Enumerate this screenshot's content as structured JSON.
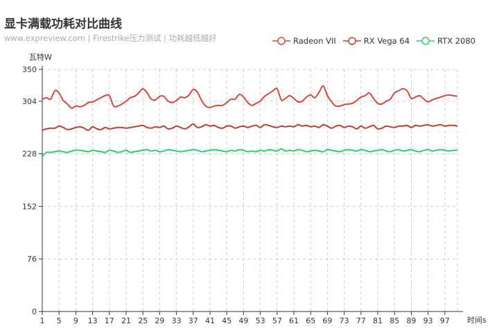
{
  "title": "显卡满载功耗对比曲线",
  "subtitle": "www.expreview.com | Firestrike压力测试 | 功耗越低越好",
  "chart_data": {
    "type": "line",
    "ylabel": "瓦特W",
    "xlabel": "时间s",
    "ylim": [
      0,
      350
    ],
    "yticks": [
      0,
      76,
      152,
      228,
      304,
      350
    ],
    "xlim": [
      1,
      100
    ],
    "xticks": [
      1,
      5,
      9,
      13,
      17,
      21,
      25,
      29,
      33,
      37,
      41,
      45,
      49,
      53,
      57,
      61,
      65,
      69,
      73,
      77,
      81,
      85,
      89,
      93,
      97
    ],
    "grid": true,
    "legend_position": "top-right",
    "x": [
      1,
      2,
      3,
      4,
      5,
      6,
      7,
      8,
      9,
      10,
      11,
      12,
      13,
      14,
      15,
      16,
      17,
      18,
      19,
      20,
      21,
      22,
      23,
      24,
      25,
      26,
      27,
      28,
      29,
      30,
      31,
      32,
      33,
      34,
      35,
      36,
      37,
      38,
      39,
      40,
      41,
      42,
      43,
      44,
      45,
      46,
      47,
      48,
      49,
      50,
      51,
      52,
      53,
      54,
      55,
      56,
      57,
      58,
      59,
      60,
      61,
      62,
      63,
      64,
      65,
      66,
      67,
      68,
      69,
      70,
      71,
      72,
      73,
      74,
      75,
      76,
      77,
      78,
      79,
      80,
      81,
      82,
      83,
      84,
      85,
      86,
      87,
      88,
      89,
      90,
      91,
      92,
      93,
      94,
      95,
      96,
      97,
      98,
      99,
      100
    ],
    "series": [
      {
        "name": "Radeon VII",
        "color": "#d14a3d",
        "values": [
          307,
          309,
          307,
          319,
          316,
          305,
          300,
          294,
          297,
          296,
          298,
          302,
          303,
          306,
          309,
          312,
          312,
          297,
          297,
          300,
          304,
          309,
          311,
          316,
          322,
          316,
          307,
          306,
          311,
          311,
          304,
          302,
          305,
          310,
          309,
          313,
          321,
          317,
          305,
          297,
          295,
          297,
          298,
          298,
          302,
          307,
          307,
          314,
          310,
          302,
          298,
          301,
          304,
          311,
          315,
          319,
          322,
          306,
          308,
          312,
          308,
          303,
          304,
          310,
          313,
          309,
          317,
          326,
          312,
          303,
          297,
          297,
          299,
          300,
          301,
          305,
          310,
          312,
          316,
          308,
          301,
          300,
          304,
          307,
          316,
          319,
          322,
          319,
          308,
          310,
          312,
          307,
          303,
          306,
          308,
          310,
          312,
          313,
          312,
          311
        ]
      },
      {
        "name": "RX Vega 64",
        "color": "#b84033",
        "values": [
          262,
          264,
          265,
          265,
          268,
          266,
          263,
          264,
          266,
          267,
          265,
          262,
          267,
          264,
          263,
          266,
          264,
          265,
          266,
          266,
          265,
          266,
          267,
          268,
          269,
          266,
          265,
          267,
          266,
          268,
          264,
          265,
          268,
          266,
          264,
          267,
          271,
          266,
          267,
          270,
          268,
          269,
          266,
          265,
          268,
          268,
          265,
          267,
          268,
          266,
          268,
          269,
          266,
          270,
          269,
          267,
          266,
          268,
          267,
          268,
          267,
          270,
          268,
          269,
          267,
          268,
          266,
          270,
          268,
          265,
          268,
          269,
          266,
          268,
          267,
          264,
          268,
          265,
          267,
          269,
          264,
          265,
          268,
          267,
          266,
          268,
          268,
          269,
          266,
          269,
          268,
          269,
          270,
          268,
          269,
          270,
          268,
          269,
          269,
          268
        ]
      },
      {
        "name": "RTX 2080",
        "color": "#2ecc71",
        "values": [
          224,
          230,
          230,
          231,
          232,
          231,
          230,
          232,
          233,
          233,
          232,
          231,
          233,
          232,
          231,
          230,
          233,
          232,
          230,
          231,
          233,
          230,
          231,
          232,
          233,
          234,
          232,
          233,
          231,
          232,
          234,
          233,
          232,
          231,
          232,
          233,
          234,
          233,
          231,
          232,
          233,
          234,
          233,
          232,
          231,
          233,
          232,
          234,
          233,
          231,
          232,
          231,
          233,
          232,
          234,
          233,
          232,
          235,
          232,
          233,
          232,
          234,
          233,
          231,
          232,
          233,
          232,
          231,
          234,
          233,
          232,
          231,
          233,
          234,
          233,
          232,
          234,
          233,
          231,
          232,
          233,
          234,
          232,
          231,
          233,
          234,
          232,
          233,
          234,
          232,
          231,
          233,
          234,
          232,
          233,
          234,
          233,
          232,
          233,
          233
        ]
      }
    ]
  }
}
